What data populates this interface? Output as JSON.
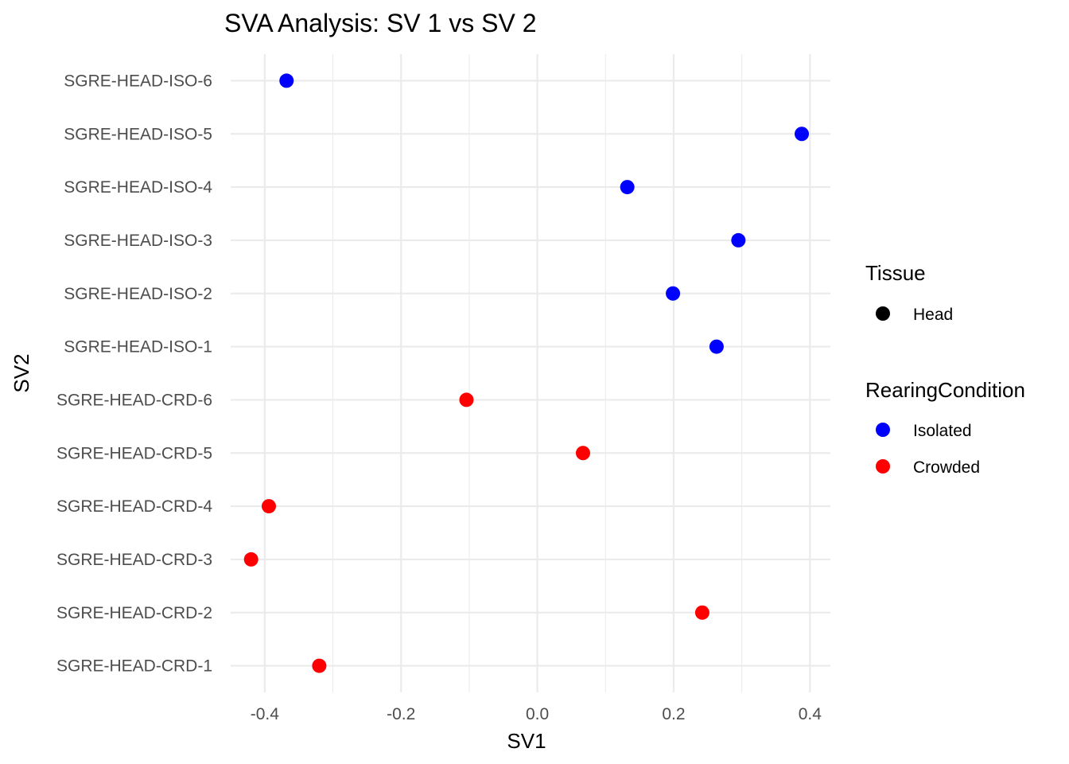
{
  "chart_data": {
    "type": "scatter",
    "title": "SVA Analysis: SV 1  vs SV 2",
    "xlabel": "SV1",
    "ylabel": "SV2",
    "xlim": [
      -0.45,
      0.43
    ],
    "x_ticks": [
      -0.4,
      -0.2,
      0.0,
      0.2,
      0.4
    ],
    "x_tick_labels": [
      "-0.4",
      "-0.2",
      "0.0",
      "0.2",
      "0.4"
    ],
    "grid": true,
    "y_categories": [
      "SGRE-HEAD-CRD-1",
      "SGRE-HEAD-CRD-2",
      "SGRE-HEAD-CRD-3",
      "SGRE-HEAD-CRD-4",
      "SGRE-HEAD-CRD-5",
      "SGRE-HEAD-CRD-6",
      "SGRE-HEAD-ISO-1",
      "SGRE-HEAD-ISO-2",
      "SGRE-HEAD-ISO-3",
      "SGRE-HEAD-ISO-4",
      "SGRE-HEAD-ISO-5",
      "SGRE-HEAD-ISO-6"
    ],
    "series": [
      {
        "name": "Isolated",
        "color": "#0000ff",
        "points": [
          {
            "y": "SGRE-HEAD-ISO-6",
            "x": -0.368
          },
          {
            "y": "SGRE-HEAD-ISO-5",
            "x": 0.388
          },
          {
            "y": "SGRE-HEAD-ISO-4",
            "x": 0.132
          },
          {
            "y": "SGRE-HEAD-ISO-3",
            "x": 0.295
          },
          {
            "y": "SGRE-HEAD-ISO-2",
            "x": 0.199
          },
          {
            "y": "SGRE-HEAD-ISO-1",
            "x": 0.263
          }
        ]
      },
      {
        "name": "Crowded",
        "color": "#ff0000",
        "points": [
          {
            "y": "SGRE-HEAD-CRD-6",
            "x": -0.104
          },
          {
            "y": "SGRE-HEAD-CRD-5",
            "x": 0.067
          },
          {
            "y": "SGRE-HEAD-CRD-4",
            "x": -0.394
          },
          {
            "y": "SGRE-HEAD-CRD-3",
            "x": -0.42
          },
          {
            "y": "SGRE-HEAD-CRD-2",
            "x": 0.242
          },
          {
            "y": "SGRE-HEAD-CRD-1",
            "x": -0.32
          }
        ]
      }
    ],
    "legends": [
      {
        "title": "Tissue",
        "items": [
          {
            "label": "Head",
            "color": "#000000"
          }
        ]
      },
      {
        "title": "RearingCondition",
        "items": [
          {
            "label": "Isolated",
            "color": "#0000ff"
          },
          {
            "label": "Crowded",
            "color": "#ff0000"
          }
        ]
      }
    ],
    "legend_position": "right"
  }
}
